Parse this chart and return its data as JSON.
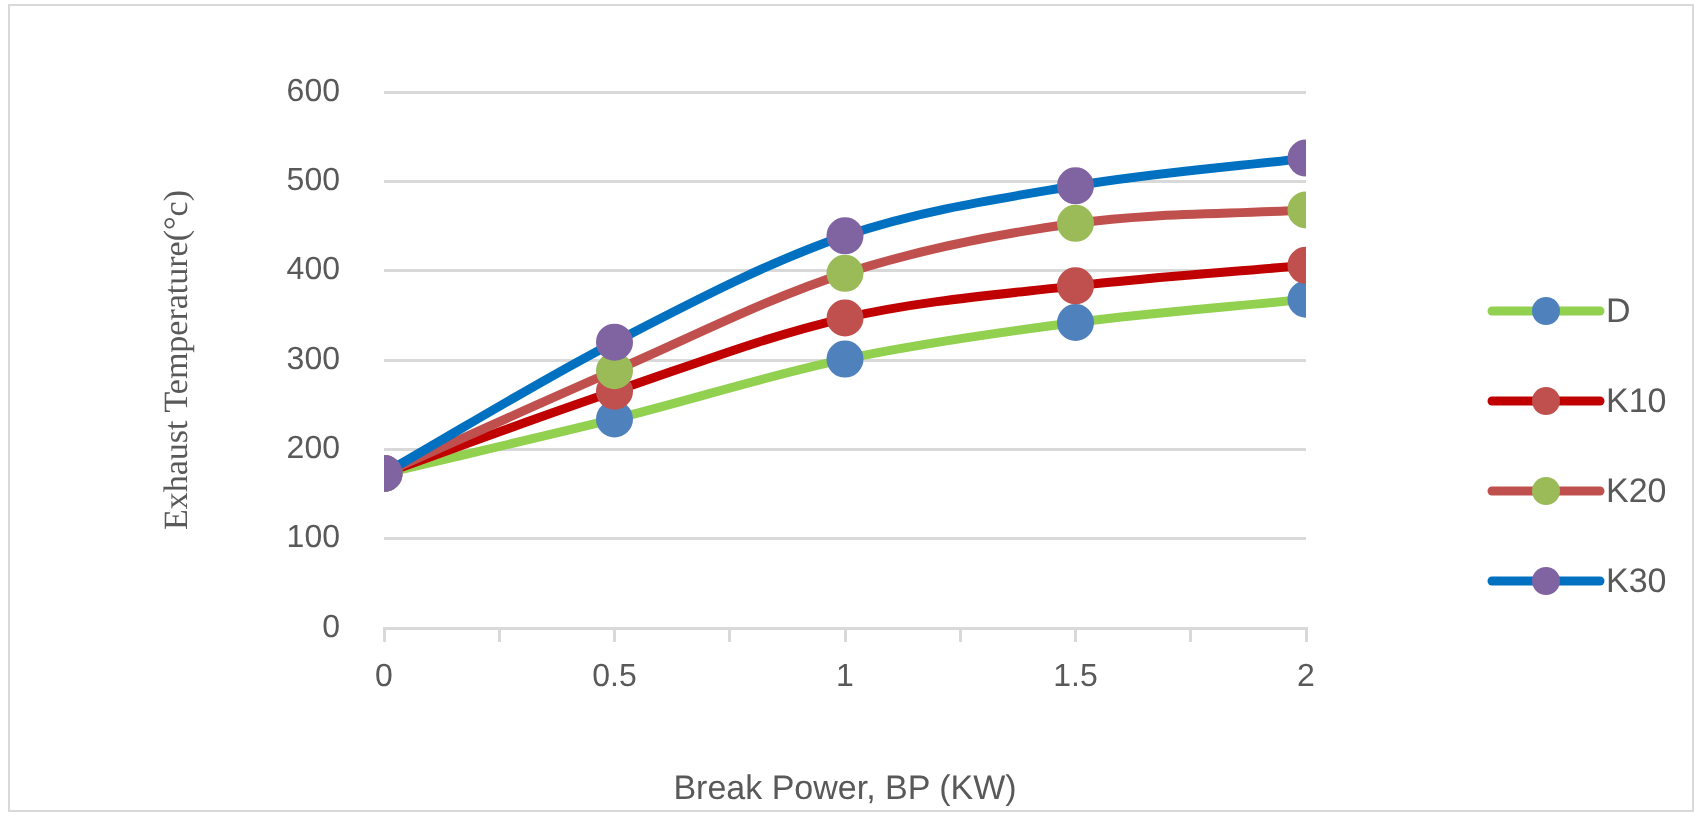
{
  "chart_data": {
    "type": "line",
    "xlabel": "Break Power, BP (KW)",
    "ylabel": "Exhaust Temperature(°c)",
    "x": [
      0,
      0.5,
      1,
      1.5,
      2
    ],
    "series": [
      {
        "name": "D",
        "color": "#92d050",
        "colors": [
          "#4f81bd",
          "#4f81bd",
          "#4f81bd",
          "#4f81bd",
          "#4f81bd"
        ],
        "values": [
          173,
          234,
          301,
          342,
          368
        ]
      },
      {
        "name": "K10",
        "color": "#c00000",
        "colors": [
          "#c0504d",
          "#c0504d",
          "#c0504d",
          "#c0504d",
          "#c0504d"
        ],
        "values": [
          173,
          265,
          347,
          383,
          406
        ]
      },
      {
        "name": "K20",
        "color": "#c0504d",
        "colors": [
          "#9bbb59",
          "#9bbb59",
          "#9bbb59",
          "#9bbb59",
          "#9bbb59"
        ],
        "values": [
          173,
          288,
          397,
          453,
          468
        ]
      },
      {
        "name": "K30",
        "color": "#0070c0",
        "colors": [
          "#8064a2",
          "#8064a2",
          "#8064a2",
          "#8064a2",
          "#8064a2"
        ],
        "values": [
          173,
          320,
          439,
          495,
          526
        ]
      }
    ],
    "xlim": [
      0,
      2
    ],
    "xticks": [
      0,
      {
        "value": 0.25,
        "label": null
      },
      0.5,
      {
        "value": 0.75,
        "label": null
      },
      1,
      {
        "value": 1.25,
        "label": null
      },
      1.5,
      {
        "value": 1.75,
        "label": null
      },
      2
    ],
    "ylim": [
      0,
      600
    ],
    "yticks": [
      0,
      100,
      200,
      300,
      400,
      500,
      600
    ],
    "grid": "y",
    "legend": "right",
    "marker": "circle",
    "line_style": "solid"
  }
}
